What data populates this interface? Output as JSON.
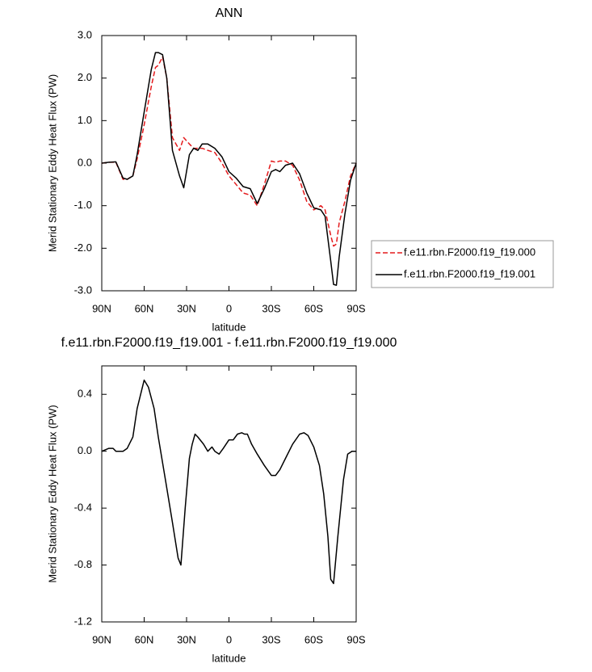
{
  "chart_data": [
    {
      "type": "line",
      "title": "ANN",
      "xlabel": "latitude",
      "ylabel": "Merid Stationary Eddy Heat Flux (PW)",
      "x": [
        90,
        85,
        80,
        75,
        72,
        68,
        65,
        60,
        55,
        52,
        50,
        47,
        44,
        40,
        35,
        32,
        28,
        25,
        22,
        19,
        15,
        10,
        5,
        0,
        -5,
        -10,
        -15,
        -20,
        -25,
        -30,
        -33,
        -36,
        -40,
        -45,
        -50,
        -55,
        -60,
        -65,
        -68,
        -72,
        -74,
        -76,
        -78,
        -82,
        -86,
        -90
      ],
      "series": [
        {
          "name": "f.e11.rbn.F2000.f19_f19.000",
          "color": "#e41a1c",
          "linestyle": "dashed",
          "values": [
            0,
            0.02,
            0.02,
            -0.38,
            -0.38,
            -0.3,
            0.1,
            0.9,
            1.8,
            2.25,
            2.3,
            2.5,
            2.0,
            0.6,
            0.3,
            0.6,
            0.45,
            0.35,
            0.35,
            0.35,
            0.3,
            0.25,
            0.0,
            -0.3,
            -0.5,
            -0.7,
            -0.75,
            -1.0,
            -0.5,
            0.05,
            0.02,
            0.05,
            0.05,
            -0.05,
            -0.4,
            -0.9,
            -1.1,
            -1.0,
            -1.1,
            -1.7,
            -1.95,
            -1.9,
            -1.4,
            -0.9,
            -0.3,
            0
          ]
        },
        {
          "name": "f.e11.rbn.F2000.f19_f19.001",
          "color": "#000000",
          "linestyle": "solid",
          "values": [
            0,
            0.02,
            0.03,
            -0.35,
            -0.38,
            -0.3,
            0.2,
            1.2,
            2.2,
            2.6,
            2.6,
            2.55,
            2.0,
            0.3,
            -0.3,
            -0.58,
            0.2,
            0.35,
            0.3,
            0.45,
            0.45,
            0.35,
            0.15,
            -0.2,
            -0.35,
            -0.55,
            -0.6,
            -0.95,
            -0.6,
            -0.2,
            -0.15,
            -0.2,
            -0.05,
            0.0,
            -0.25,
            -0.7,
            -1.05,
            -1.1,
            -1.25,
            -2.3,
            -2.85,
            -2.87,
            -2.2,
            -1.2,
            -0.4,
            0
          ]
        }
      ],
      "xlim": [
        90,
        -90
      ],
      "xticks": [
        {
          "value": 90,
          "label": "90N"
        },
        {
          "value": 60,
          "label": "60N"
        },
        {
          "value": 30,
          "label": "30N"
        },
        0,
        {
          "value": -30,
          "label": "30S"
        },
        {
          "value": -60,
          "label": "60S"
        },
        {
          "value": -90,
          "label": "90S"
        }
      ],
      "ylim": [
        -3,
        3
      ],
      "yticks": [
        {
          "value": -3,
          "label": "-3.0"
        },
        {
          "value": -2,
          "label": "-2.0"
        },
        {
          "value": -1,
          "label": "-1.0"
        },
        {
          "value": 0,
          "label": "0.0"
        },
        {
          "value": 1,
          "label": "1.0"
        },
        {
          "value": 2,
          "label": "2.0"
        },
        {
          "value": 3,
          "label": "3.0"
        }
      ],
      "legend": "right"
    },
    {
      "type": "line",
      "title": "f.e11.rbn.F2000.f19_f19.001 - f.e11.rbn.F2000.f19_f19.000",
      "xlabel": "latitude",
      "ylabel": "Merid Stationary Eddy Heat Flux (PW)",
      "x": [
        90,
        85,
        82,
        80,
        75,
        72,
        68,
        65,
        60,
        57,
        53,
        50,
        45,
        40,
        36,
        34,
        31,
        28,
        26,
        24,
        22,
        18,
        15,
        12,
        10,
        7,
        4,
        0,
        -3,
        -6,
        -9,
        -11,
        -13,
        -16,
        -20,
        -25,
        -30,
        -33,
        -36,
        -40,
        -45,
        -50,
        -53,
        -56,
        -60,
        -64,
        -67,
        -70,
        -72,
        -74,
        -77,
        -81,
        -84,
        -87,
        -90
      ],
      "values": [
        0,
        0.02,
        0.02,
        0.0,
        0.0,
        0.02,
        0.1,
        0.3,
        0.5,
        0.45,
        0.3,
        0.1,
        -0.2,
        -0.5,
        -0.75,
        -0.8,
        -0.4,
        -0.05,
        0.05,
        0.12,
        0.1,
        0.05,
        0.0,
        0.03,
        0.0,
        -0.02,
        0.02,
        0.08,
        0.08,
        0.12,
        0.13,
        0.12,
        0.12,
        0.05,
        -0.02,
        -0.1,
        -0.17,
        -0.17,
        -0.13,
        -0.05,
        0.05,
        0.12,
        0.13,
        0.11,
        0.03,
        -0.1,
        -0.3,
        -0.6,
        -0.9,
        -0.93,
        -0.6,
        -0.2,
        -0.02,
        0.0,
        0.0
      ],
      "color": "#000000",
      "xlim": [
        90,
        -90
      ],
      "xticks": [
        {
          "value": 90,
          "label": "90N"
        },
        {
          "value": 60,
          "label": "60N"
        },
        {
          "value": 30,
          "label": "30N"
        },
        0,
        {
          "value": -30,
          "label": "30S"
        },
        {
          "value": -60,
          "label": "60S"
        },
        {
          "value": -90,
          "label": "90S"
        }
      ],
      "ylim": [
        -1.2,
        0.6
      ],
      "yticks": [
        -1.2,
        -0.8,
        -0.4,
        {
          "value": 0,
          "label": "0.0"
        },
        0.4
      ]
    }
  ]
}
